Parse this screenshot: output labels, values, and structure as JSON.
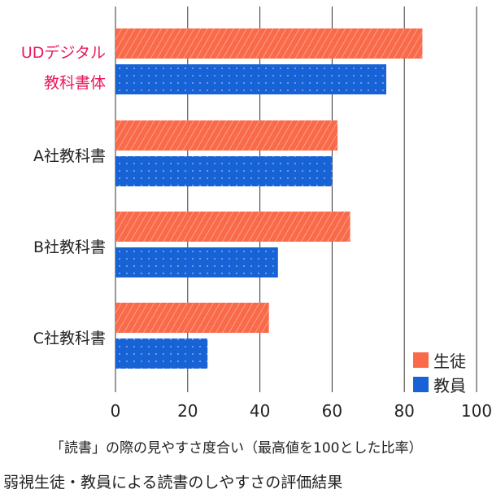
{
  "chart_data": {
    "type": "bar",
    "orientation": "horizontal",
    "categories": [
      "UDデジタル教科書体",
      "A社教科書",
      "B社教科書",
      "C社教科書"
    ],
    "category_lines": [
      [
        "UDデジタル",
        "教科書体"
      ],
      [
        "A社教科書"
      ],
      [
        "B社教科書"
      ],
      [
        "C社教科書"
      ]
    ],
    "series": [
      {
        "name": "生徒",
        "color": "#f96a4a",
        "values": [
          85,
          61.5,
          65,
          42.5
        ]
      },
      {
        "name": "教員",
        "color": "#1763d6",
        "values": [
          75,
          60,
          45,
          25.5
        ]
      }
    ],
    "xlabel": "「読書」の際の見やすさ度合い（最高値を100とした比率）",
    "ylabel": "",
    "xlim": [
      0,
      100
    ],
    "xticks": [
      "0",
      "20",
      "40",
      "60",
      "80",
      "100"
    ],
    "grid": true,
    "legend": "bottom-right",
    "caption": "弱視生徒・教員による読書のしやすさの評価結果",
    "highlight_color": "#e8195a"
  }
}
